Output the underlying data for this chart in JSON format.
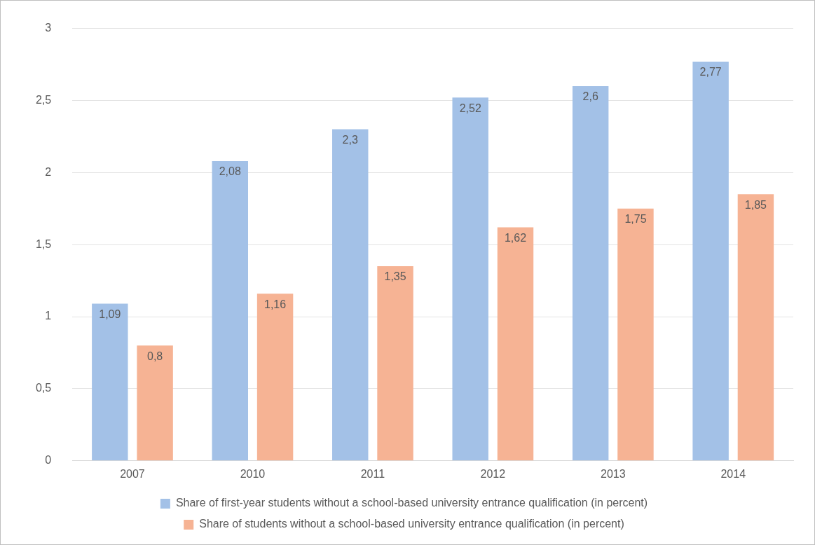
{
  "chart_data": {
    "type": "bar",
    "categories": [
      "2007",
      "2010",
      "2011",
      "2012",
      "2013",
      "2014"
    ],
    "series": [
      {
        "name": "Share of first-year students without a school-based university entrance qualification (in percent)",
        "color": "#a3c1e7",
        "values": [
          1.09,
          2.08,
          2.3,
          2.52,
          2.6,
          2.77
        ],
        "value_labels": [
          "1,09",
          "2,08",
          "2,3",
          "2,52",
          "2,6",
          "2,77"
        ]
      },
      {
        "name": "Share of students without a school-based university entrance qualification (in percent)",
        "color": "#f6b394",
        "values": [
          0.8,
          1.16,
          1.35,
          1.62,
          1.75,
          1.85
        ],
        "value_labels": [
          "0,8",
          "1,16",
          "1,35",
          "1,62",
          "1,75",
          "1,85"
        ]
      }
    ],
    "ylim": [
      0,
      3
    ],
    "yticks": [
      0,
      {
        "value": 0.5,
        "label": "0,5"
      },
      1,
      {
        "value": 1.5,
        "label": "1,5"
      },
      2,
      {
        "value": 2.5,
        "label": "2,5"
      },
      3
    ],
    "grid": "y",
    "legend": "bottom"
  }
}
